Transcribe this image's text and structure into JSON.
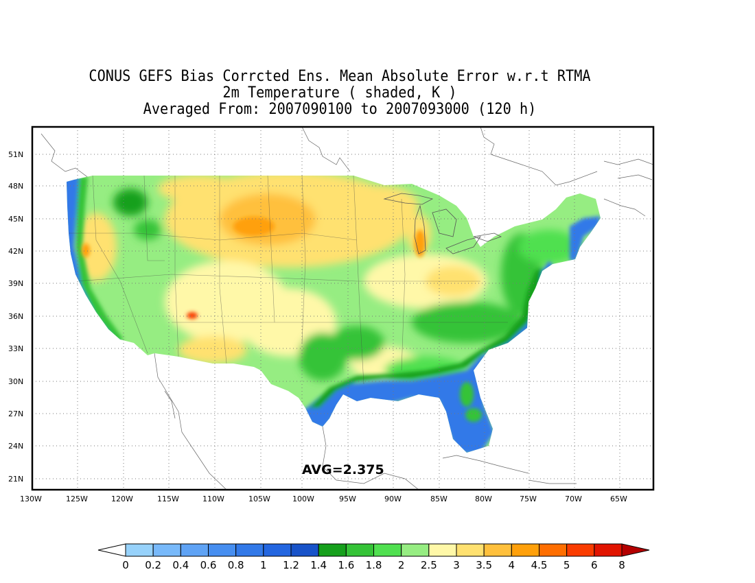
{
  "title": {
    "line1": "CONUS GEFS Bias Corrcted Ens. Mean Absolute Error w.r.t RTMA",
    "line2": "2m Temperature ( shaded, K )",
    "line3": "Averaged From: 2007090100 to 2007093000 (120 h)"
  },
  "avg_label": "AVG=2.375",
  "map": {
    "lon_range": [
      -130,
      -62.5
    ],
    "lat_range": [
      20,
      53
    ],
    "lon_ticks": [
      "130W",
      "125W",
      "120W",
      "115W",
      "110W",
      "105W",
      "100W",
      "95W",
      "90W",
      "85W",
      "80W",
      "75W",
      "70W",
      "65W"
    ],
    "lat_ticks": [
      "21N",
      "24N",
      "27N",
      "30N",
      "33N",
      "36N",
      "39N",
      "42N",
      "45N",
      "48N",
      "51N"
    ],
    "grid": "dotted"
  },
  "colorbar": {
    "labels": [
      "0",
      "0.2",
      "0.4",
      "0.6",
      "0.8",
      "1",
      "1.2",
      "1.4",
      "1.6",
      "1.8",
      "2",
      "2.5",
      "3",
      "3.5",
      "4",
      "4.5",
      "5",
      "6",
      "8"
    ],
    "colors": [
      "#ffffff",
      "#97d2fb",
      "#78b9fa",
      "#5fa3f5",
      "#468ef0",
      "#3279e8",
      "#2366e0",
      "#1853c9",
      "#16a01c",
      "#35c337",
      "#50e050",
      "#96ed82",
      "#fff8a8",
      "#ffe170",
      "#ffc03c",
      "#ffa00a",
      "#ff6e00",
      "#fa3c00",
      "#e11400",
      "#b40000"
    ]
  }
}
